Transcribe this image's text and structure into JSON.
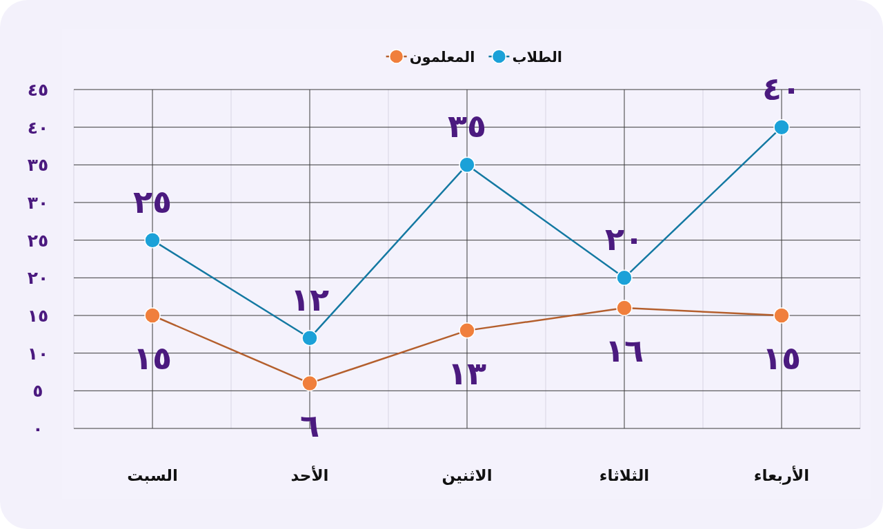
{
  "chart_data": {
    "type": "line",
    "categories": [
      "السبت",
      "الأحد",
      "الاثنين",
      "الثلاثاء",
      "الأربعاء"
    ],
    "series": [
      {
        "name": "الطلاب",
        "color": "#1ba1d8",
        "values": [
          25,
          12,
          35,
          20,
          40
        ],
        "value_labels": [
          "٢٥",
          "١٢",
          "٣٥",
          "٢٠",
          "٤٠"
        ]
      },
      {
        "name": "المعلمون",
        "color": "#f07f3c",
        "values": [
          15,
          6,
          13,
          16,
          15
        ],
        "value_labels": [
          "١٥",
          "٦",
          "١٣",
          "١٦",
          "١٥"
        ]
      }
    ],
    "ylim": [
      0,
      45
    ],
    "yticks": [
      {
        "value": 0,
        "label": "٠"
      },
      {
        "value": 5,
        "label": "٥"
      },
      {
        "value": 10,
        "label": "١٠"
      },
      {
        "value": 15,
        "label": "١٥"
      },
      {
        "value": 20,
        "label": "٢٠"
      },
      {
        "value": 25,
        "label": "٢٥"
      },
      {
        "value": 30,
        "label": "٣٠"
      },
      {
        "value": 35,
        "label": "٣٥"
      },
      {
        "value": 40,
        "label": "٤٠"
      },
      {
        "value": 45,
        "label": "٤٥"
      }
    ],
    "grid": true,
    "legend": "top",
    "marker": "circle",
    "line_style": "solid"
  }
}
